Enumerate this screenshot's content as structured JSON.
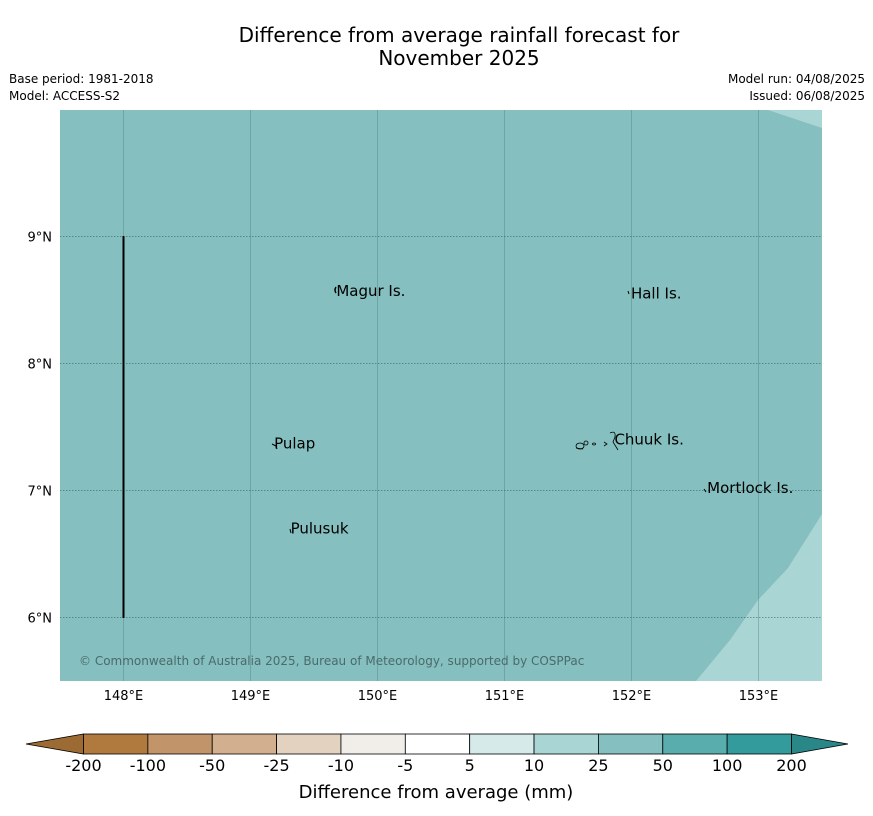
{
  "header": {
    "title_line1": "Difference from average rainfall forecast for",
    "title_line2": "November 2025",
    "base_period": "Base period: 1981-2018",
    "model": "Model: ACCESS-S2",
    "model_run": "Model run: 04/08/2025",
    "issued": "Issued: 06/08/2025"
  },
  "map": {
    "background_color": "#85bfbf",
    "light_region_color": "#aad5d5",
    "lon_ticks": [
      {
        "value": 148,
        "label": "148°E"
      },
      {
        "value": 149,
        "label": "149°E"
      },
      {
        "value": 150,
        "label": "150°E"
      },
      {
        "value": 151,
        "label": "151°E"
      },
      {
        "value": 152,
        "label": "152°E"
      },
      {
        "value": 153,
        "label": "153°E"
      }
    ],
    "lat_ticks": [
      {
        "value": 9,
        "label": "9°N"
      },
      {
        "value": 8,
        "label": "8°N"
      },
      {
        "value": 7,
        "label": "7°N"
      },
      {
        "value": 6,
        "label": "6°N"
      }
    ],
    "places": [
      {
        "name": "Magur Is.",
        "lon": 149.66,
        "lat": 8.57
      },
      {
        "name": "Hall Is.",
        "lon": 151.98,
        "lat": 8.55
      },
      {
        "name": "Pulap",
        "lon": 149.17,
        "lat": 7.37
      },
      {
        "name": "Chuuk Is.",
        "lon": 151.85,
        "lat": 7.4
      },
      {
        "name": "Mortlock Is.",
        "lon": 152.58,
        "lat": 7.02
      },
      {
        "name": "Pulusuk",
        "lon": 149.3,
        "lat": 6.7
      }
    ],
    "copyright": "© Commonwealth of Australia 2025, Bureau of Meteorology, supported by COSPPac"
  },
  "colorbar": {
    "title": "Difference from average (mm)",
    "labels": [
      "-200",
      "-100",
      "-50",
      "-25",
      "-10",
      "-5",
      "5",
      "10",
      "25",
      "50",
      "100",
      "200"
    ],
    "colors": [
      "#b07a3f",
      "#c1946a",
      "#d2b08f",
      "#e4d2c0",
      "#f1eee9",
      "#ffffff",
      "#d6eaea",
      "#aad5d5",
      "#85bfbf",
      "#5aadad",
      "#339b9b"
    ],
    "under_color": "#9c6a33",
    "over_color": "#2a8787"
  }
}
